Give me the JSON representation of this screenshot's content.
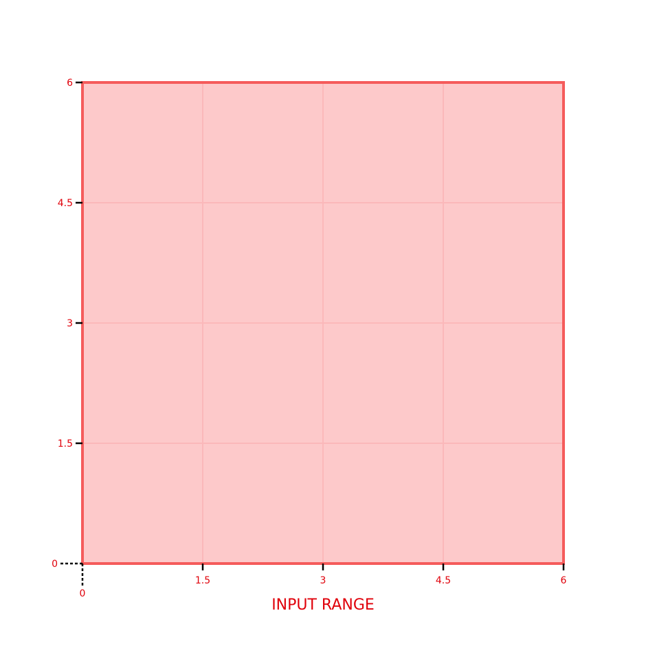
{
  "chart_data": {
    "type": "area",
    "title": "",
    "xlabel": "INPUT RANGE",
    "ylabel": "",
    "xlim": [
      0,
      6
    ],
    "ylim": [
      0,
      6
    ],
    "x_ticks": [
      "0",
      "1.5",
      "3",
      "4.5",
      "6"
    ],
    "y_ticks": [
      "0",
      "1.5",
      "3",
      "4.5",
      "6"
    ],
    "x_tick_values": [
      0,
      1.5,
      3,
      4.5,
      6
    ],
    "y_tick_values": [
      0,
      1.5,
      3,
      4.5,
      6
    ],
    "grid": true,
    "series": [
      {
        "x": [
          0,
          6
        ],
        "y": [
          6,
          6
        ]
      }
    ],
    "colors": {
      "fill": "#fdc9ca",
      "edge": "#f55b5b",
      "grid": "#fbb8ba",
      "labels": "#e0000a",
      "axis": "#000000"
    }
  }
}
